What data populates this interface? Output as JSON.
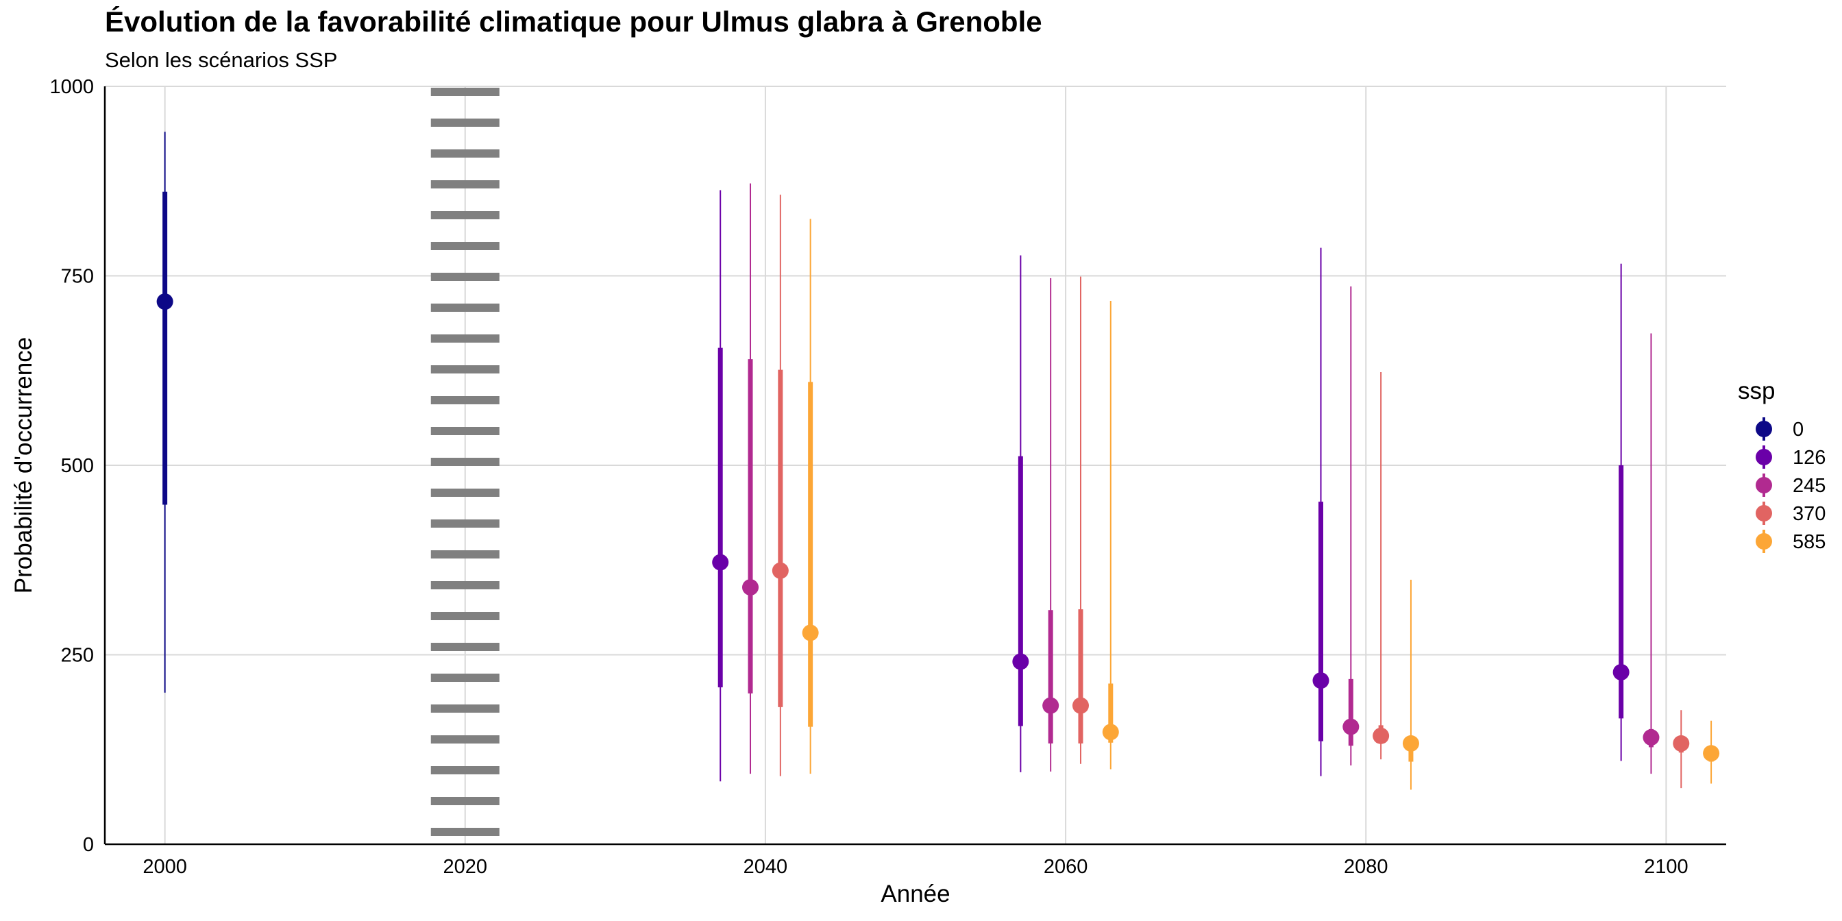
{
  "chart_data": {
    "type": "pointrange",
    "title": "Évolution de la favorabilité climatique pour Ulmus glabra à Grenoble",
    "subtitle": "Selon les scénarios SSP",
    "xlabel": "Année",
    "ylabel": "Probabilité d'occurrence",
    "xlim": [
      1996,
      2104
    ],
    "ylim": [
      0,
      1000
    ],
    "x_ticks": [
      2000,
      2020,
      2040,
      2060,
      2080,
      2100
    ],
    "y_ticks": [
      0,
      250,
      500,
      750,
      1000
    ],
    "grid": "major",
    "reference_line": {
      "x": 2020,
      "style": "dotted",
      "color": "#808080"
    },
    "legend": {
      "title": "ssp",
      "position": "right",
      "entries": [
        {
          "label": "0",
          "color": "#0D0887"
        },
        {
          "label": "126",
          "color": "#6A00A8"
        },
        {
          "label": "245",
          "color": "#B12A90"
        },
        {
          "label": "370",
          "color": "#E16462"
        },
        {
          "label": "585",
          "color": "#FCA636"
        }
      ]
    },
    "series": [
      {
        "name": "0",
        "color": "#0D0887",
        "points": [
          {
            "x": 2000,
            "median": 716,
            "q25": 448,
            "q75": 861,
            "min": 200,
            "max": 940
          }
        ]
      },
      {
        "name": "126",
        "color": "#6A00A8",
        "points": [
          {
            "x": 2037,
            "median": 372,
            "q25": 207,
            "q75": 655,
            "min": 83,
            "max": 863
          },
          {
            "x": 2057,
            "median": 241,
            "q25": 156,
            "q75": 512,
            "min": 95,
            "max": 777
          },
          {
            "x": 2077,
            "median": 216,
            "q25": 136,
            "q75": 452,
            "min": 90,
            "max": 787
          },
          {
            "x": 2097,
            "median": 227,
            "q25": 166,
            "q75": 500,
            "min": 110,
            "max": 766
          }
        ]
      },
      {
        "name": "245",
        "color": "#B12A90",
        "points": [
          {
            "x": 2039,
            "median": 339,
            "q25": 199,
            "q75": 640,
            "min": 93,
            "max": 872
          },
          {
            "x": 2059,
            "median": 183,
            "q25": 133,
            "q75": 309,
            "min": 96,
            "max": 747
          },
          {
            "x": 2079,
            "median": 155,
            "q25": 130,
            "q75": 218,
            "min": 104,
            "max": 736
          },
          {
            "x": 2099,
            "median": 141,
            "q25": 128,
            "q75": 152,
            "min": 93,
            "max": 674
          }
        ]
      },
      {
        "name": "370",
        "color": "#E16462",
        "points": [
          {
            "x": 2041,
            "median": 361,
            "q25": 181,
            "q75": 626,
            "min": 90,
            "max": 857
          },
          {
            "x": 2061,
            "median": 183,
            "q25": 133,
            "q75": 310,
            "min": 106,
            "max": 749
          },
          {
            "x": 2081,
            "median": 143,
            "q25": 133,
            "q75": 157,
            "min": 112,
            "max": 623
          },
          {
            "x": 2101,
            "median": 133,
            "q25": 121,
            "q75": 142,
            "min": 74,
            "max": 177
          }
        ]
      },
      {
        "name": "585",
        "color": "#FCA636",
        "points": [
          {
            "x": 2043,
            "median": 279,
            "q25": 155,
            "q75": 610,
            "min": 93,
            "max": 825
          },
          {
            "x": 2063,
            "median": 148,
            "q25": 134,
            "q75": 212,
            "min": 99,
            "max": 717
          },
          {
            "x": 2083,
            "median": 133,
            "q25": 109,
            "q75": 143,
            "min": 72,
            "max": 349
          },
          {
            "x": 2103,
            "median": 120,
            "q25": 109,
            "q75": 128,
            "min": 80,
            "max": 163
          }
        ]
      }
    ]
  }
}
